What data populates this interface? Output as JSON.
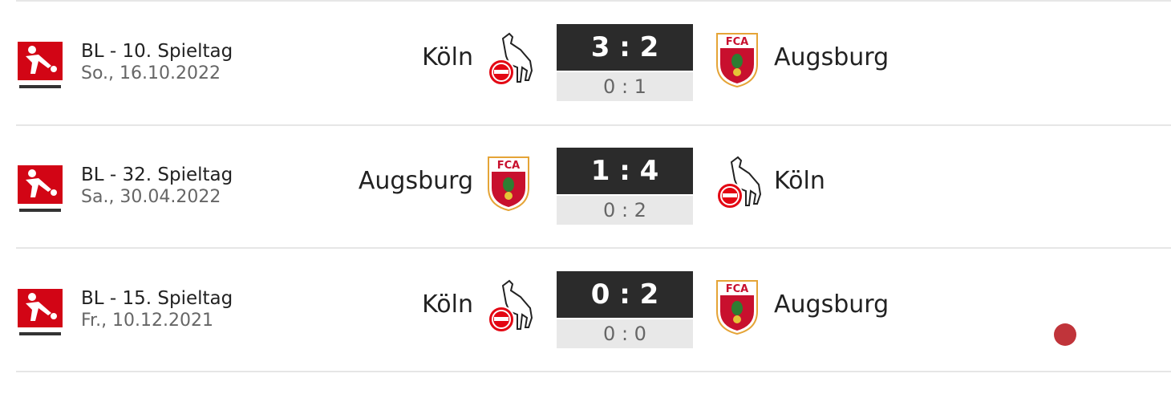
{
  "matches": [
    {
      "competition": "BL - 10. Spieltag",
      "date": "So., 16.10.2022",
      "home": "Köln",
      "away": "Augsburg",
      "home_logo": "koeln-crest",
      "away_logo": "augsburg-crest",
      "score": "3 : 2",
      "halftime": "0 : 1",
      "marker": false
    },
    {
      "competition": "BL - 32. Spieltag",
      "date": "Sa., 30.04.2022",
      "home": "Augsburg",
      "away": "Köln",
      "home_logo": "augsburg-crest",
      "away_logo": "koeln-crest",
      "score": "1 : 4",
      "halftime": "0 : 2",
      "marker": false
    },
    {
      "competition": "BL - 15. Spieltag",
      "date": "Fr., 10.12.2021",
      "home": "Köln",
      "away": "Augsburg",
      "home_logo": "koeln-crest",
      "away_logo": "augsburg-crest",
      "score": "0 : 2",
      "halftime": "0 : 0",
      "marker": true
    }
  ],
  "colors": {
    "bundesliga_red": "#d20515",
    "score_bg": "#2b2b2b",
    "halftime_bg": "#e8e8e8",
    "marker": "#c0343a"
  }
}
